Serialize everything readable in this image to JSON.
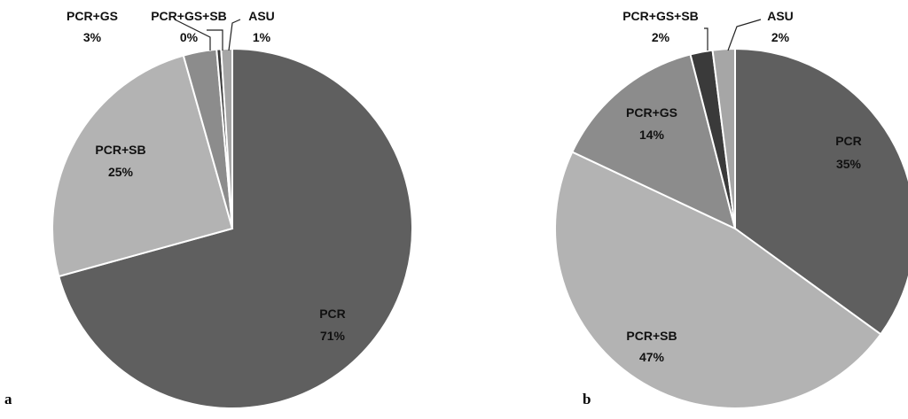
{
  "chart_data": [
    {
      "type": "pie",
      "panel_label": "a",
      "slices": [
        {
          "label": "PCR",
          "percent_label": "71%",
          "value": 71,
          "color": "#5f5f5f"
        },
        {
          "label": "PCR+SB",
          "percent_label": "25%",
          "value": 25,
          "color": "#b3b3b3"
        },
        {
          "label": "PCR+GS",
          "percent_label": "3%",
          "value": 3,
          "color": "#8c8c8c"
        },
        {
          "label": "PCR+GS+SB",
          "percent_label": "0%",
          "value": 0.4,
          "color": "#3a3a3a"
        },
        {
          "label": "ASU",
          "percent_label": "1%",
          "value": 1,
          "color": "#a6a6a6"
        }
      ]
    },
    {
      "type": "pie",
      "panel_label": "b",
      "slices": [
        {
          "label": "PCR",
          "percent_label": "35%",
          "value": 35,
          "color": "#5f5f5f"
        },
        {
          "label": "PCR+SB",
          "percent_label": "47%",
          "value": 47,
          "color": "#b3b3b3"
        },
        {
          "label": "PCR+GS",
          "percent_label": "14%",
          "value": 14,
          "color": "#8c8c8c"
        },
        {
          "label": "PCR+GS+SB",
          "percent_label": "2%",
          "value": 2,
          "color": "#3a3a3a"
        },
        {
          "label": "ASU",
          "percent_label": "2%",
          "value": 2,
          "color": "#a6a6a6"
        }
      ]
    }
  ]
}
